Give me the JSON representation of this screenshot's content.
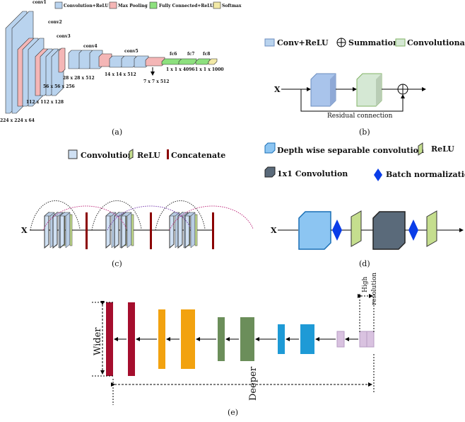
{
  "a": {
    "legend": [
      "Convolution+ReLU",
      "Max Pooling",
      "Fully Connected+ReLU",
      "Softmax"
    ],
    "layers": [
      "conv1",
      "conv2",
      "conv3",
      "conv4",
      "conv5",
      "fc6",
      "fc7",
      "fc8"
    ],
    "dims": [
      "224 x 224 x 64",
      "112 x 112 x 128",
      "56 x 56 x 256",
      "28 x 28 x 512",
      "14 x 14 x 512",
      "7 x 7 x 512",
      "1 x 1 x 4096",
      "1 x 1 x 1000"
    ],
    "caption": "(a)",
    "colors": {
      "conv": "#b9d3ee",
      "pool": "#f4b6b6",
      "fc": "#8de07e",
      "softmax": "#f2e9a6"
    }
  },
  "b": {
    "legend": [
      "Conv+ReLU",
      "Summation",
      "Convolutional"
    ],
    "input": "X",
    "residual": "Residual connection",
    "caption": "(b)"
  },
  "c": {
    "legend": [
      "Convolution",
      "ReLU",
      "Concatenate"
    ],
    "input": "X",
    "caption": "(c)"
  },
  "d": {
    "legend": [
      "Depth wise separable convolution",
      "ReLU",
      "1x1 Convolution",
      "Batch normalization"
    ],
    "input": "X",
    "caption": "(d)"
  },
  "e": {
    "wider": "Wider",
    "deeper": "Deeper",
    "high": "High",
    "resolution": "resolution",
    "caption": "(e)",
    "colors": [
      "#a50e2d",
      "#f2a20f",
      "#6b8e5a",
      "#1e9ad6",
      "#d9c2e0"
    ]
  }
}
